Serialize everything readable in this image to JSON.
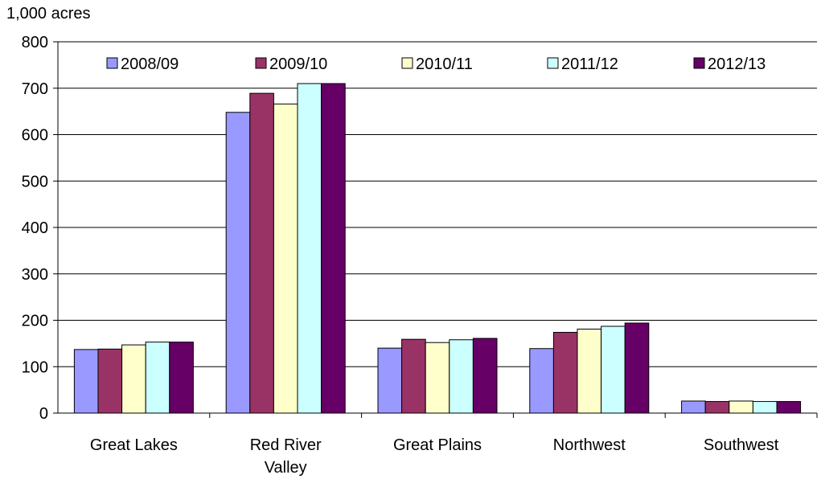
{
  "chart_data": {
    "type": "bar",
    "title": "",
    "unit_label": "1,000 acres",
    "ylim": [
      0,
      800
    ],
    "y_ticks": [
      "0",
      "100",
      "200",
      "300",
      "400",
      "500",
      "600",
      "700",
      "800"
    ],
    "grid": true,
    "legend_position": "top",
    "categories": [
      "Great Lakes",
      "Red River Valley",
      "Great Plains",
      "Northwest",
      "Southwest"
    ],
    "category_lines": [
      [
        "Great Lakes"
      ],
      [
        "Red River",
        "Valley"
      ],
      [
        "Great Plains"
      ],
      [
        "Northwest"
      ],
      [
        "Southwest"
      ]
    ],
    "series": [
      {
        "name": "2008/09",
        "color": "#9999FF",
        "values": [
          137,
          648,
          140,
          139,
          26
        ]
      },
      {
        "name": "2009/10",
        "color": "#993366",
        "values": [
          138,
          689,
          159,
          174,
          25
        ]
      },
      {
        "name": "2010/11",
        "color": "#FFFFCC",
        "values": [
          147,
          666,
          152,
          181,
          26
        ]
      },
      {
        "name": "2011/12",
        "color": "#CCFFFF",
        "values": [
          153,
          710,
          158,
          187,
          25
        ]
      },
      {
        "name": "2012/13",
        "color": "#660066",
        "values": [
          153,
          710,
          161,
          194,
          25
        ]
      }
    ]
  }
}
